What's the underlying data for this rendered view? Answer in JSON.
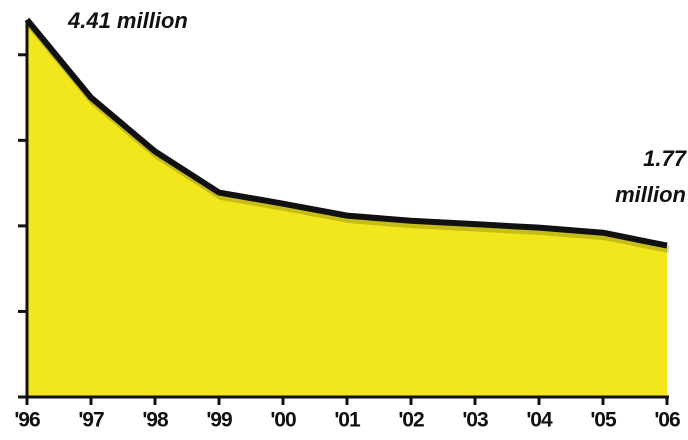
{
  "chart_data": {
    "type": "area",
    "categories": [
      "'96",
      "'97",
      "'98",
      "'99",
      "'00",
      "'01",
      "'02",
      "'03",
      "'04",
      "'05",
      "'06"
    ],
    "values": [
      4.41,
      3.5,
      2.87,
      2.39,
      2.26,
      2.12,
      2.06,
      2.02,
      1.98,
      1.92,
      1.77
    ],
    "color": "#f2e71d",
    "line_color": "#111111",
    "ylim": [
      0,
      4.5
    ],
    "yticks": [
      0,
      1,
      2,
      3,
      4
    ],
    "annotations": [
      [
        "4.41 million"
      ],
      [
        "1.77",
        "million"
      ]
    ]
  }
}
